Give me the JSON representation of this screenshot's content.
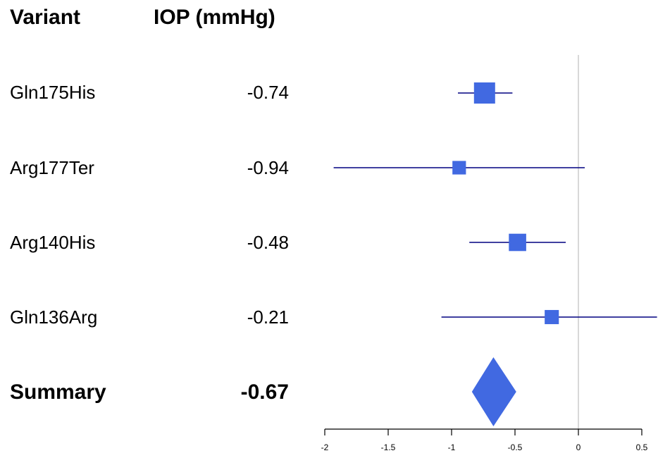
{
  "headers": {
    "variant": "Variant",
    "iop": "IOP (mmHg)"
  },
  "chart_data": {
    "type": "forest",
    "xlim": [
      -2,
      0.5
    ],
    "ticks": [
      {
        "value": -2,
        "label": "-2"
      },
      {
        "value": -1.5,
        "label": "-1.5"
      },
      {
        "value": -1,
        "label": "-1"
      },
      {
        "value": -0.5,
        "label": "-0.5"
      },
      {
        "value": 0,
        "label": "0"
      },
      {
        "value": 0.5,
        "label": "0.5"
      }
    ],
    "reference_line": 0,
    "rows": [
      {
        "label": "Gln175His",
        "value_text": "-0.74",
        "estimate": -0.74,
        "ci": [
          -0.95,
          -0.52
        ],
        "weight": 1.0
      },
      {
        "label": "Arg177Ter",
        "value_text": "-0.94",
        "estimate": -0.94,
        "ci": [
          -1.93,
          0.05
        ],
        "weight": 0.4
      },
      {
        "label": "Arg140His",
        "value_text": "-0.48",
        "estimate": -0.48,
        "ci": [
          -0.86,
          -0.1
        ],
        "weight": 0.7
      },
      {
        "label": "Gln136Arg",
        "value_text": "-0.21",
        "estimate": -0.21,
        "ci": [
          -1.08,
          0.62
        ],
        "weight": 0.45
      }
    ],
    "summary": {
      "label": "Summary",
      "value_text": "-0.67",
      "estimate": -0.67,
      "ci": [
        -0.84,
        -0.49
      ]
    },
    "colors": {
      "marker": "#4169e1",
      "ci_line": "#000080",
      "reference": "#cccccc",
      "axis": "#000000"
    }
  }
}
